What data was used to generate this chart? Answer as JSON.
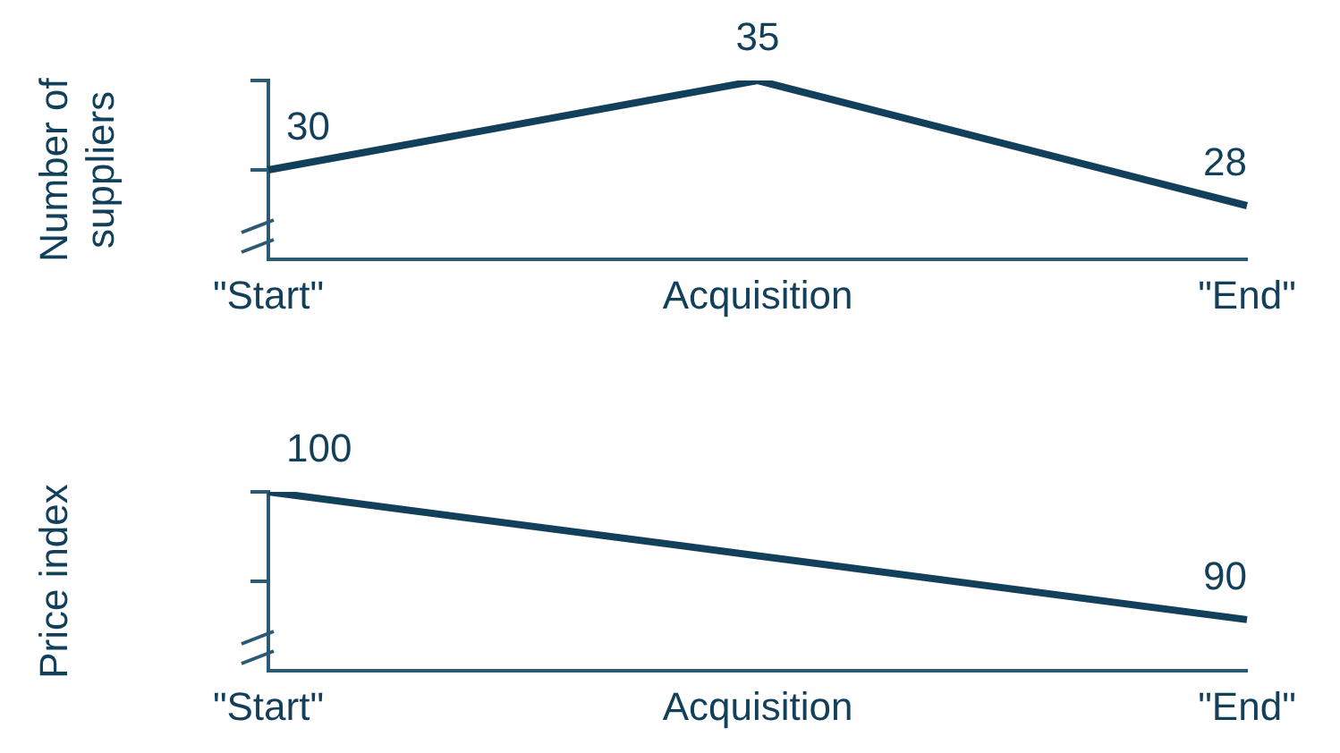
{
  "chart_data": [
    {
      "type": "line",
      "ylabel": "Number of suppliers",
      "categories": [
        "\"Start\"",
        "Acquisition",
        "\"End\""
      ],
      "series": [
        {
          "color": "#123f5a",
          "values": [
            30,
            35,
            28
          ]
        }
      ],
      "ylim": [
        25,
        35
      ],
      "yticks": [
        {
          "value": 30,
          "label": null
        },
        {
          "value": 35,
          "label": null
        }
      ],
      "data_labels": true,
      "grid": false,
      "legend": false,
      "marker": "none",
      "line_style": "solid",
      "tick_labels": "x"
    },
    {
      "type": "line",
      "ylabel": "Price index",
      "categories": [
        "\"Start\"",
        "Acquisition",
        "\"End\""
      ],
      "series": [
        {
          "color": "#123f5a",
          "values": [
            100,
            95,
            90
          ],
          "value_labels": [
            "100",
            null,
            "90"
          ]
        }
      ],
      "ylim": [
        86,
        100
      ],
      "yticks": [
        {
          "value": 100,
          "label": null
        },
        {
          "value": 93,
          "label": null
        }
      ],
      "grid": false,
      "legend": false,
      "marker": "none",
      "line_style": "solid",
      "tick_labels": "x"
    }
  ]
}
